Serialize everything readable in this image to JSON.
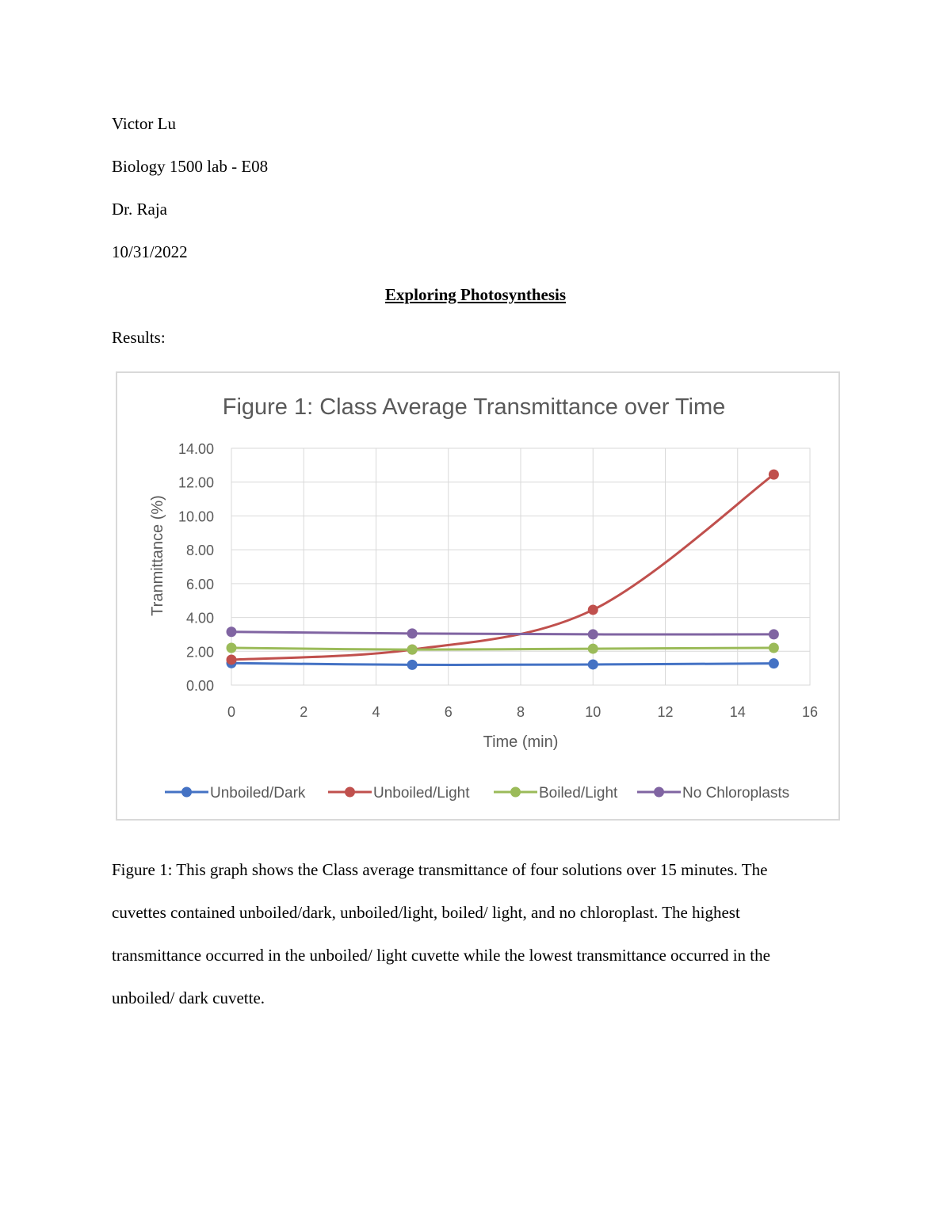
{
  "header": {
    "author": "Victor Lu",
    "course": "Biology 1500 lab - E08",
    "instructor": "Dr. Raja",
    "date": "10/31/2022"
  },
  "title": "Exploring Photosynthesis",
  "section_label": "Results:",
  "chart_data": {
    "type": "line",
    "title": "Figure 1: Class Average Transmittance over Time",
    "xlabel": "Time (min)",
    "ylabel": "Tranmittance (%)",
    "xlim": [
      0,
      16
    ],
    "ylim": [
      0,
      14
    ],
    "x_ticks": [
      "0",
      "2",
      "4",
      "6",
      "8",
      "10",
      "12",
      "14",
      "16"
    ],
    "y_ticks": [
      "0.00",
      "2.00",
      "4.00",
      "6.00",
      "8.00",
      "10.00",
      "12.00",
      "14.00"
    ],
    "grid": true,
    "smooth": true,
    "legend_position": "bottom",
    "x": [
      0,
      5,
      10,
      15
    ],
    "series": [
      {
        "name": "Unboiled/Dark",
        "color": "#4472c4",
        "values": [
          1.3,
          1.2,
          1.22,
          1.28
        ]
      },
      {
        "name": "Unboiled/Light",
        "color": "#c0504d",
        "values": [
          1.5,
          2.1,
          4.45,
          12.45
        ]
      },
      {
        "name": "Boiled/Light",
        "color": "#9bbb59",
        "values": [
          2.2,
          2.1,
          2.15,
          2.2
        ]
      },
      {
        "name": "No Chloroplasts",
        "color": "#8064a2",
        "values": [
          3.15,
          3.05,
          3.0,
          3.0
        ]
      }
    ]
  },
  "caption": {
    "text": "Figure 1: This graph shows the Class average transmittance of four solutions over 15 minutes. The cuvettes contained unboiled/dark, unboiled/light, boiled/ light, and no chloroplast. The highest transmittance occurred in the unboiled/ light cuvette while the lowest transmittance occurred in the unboiled/ dark cuvette."
  }
}
